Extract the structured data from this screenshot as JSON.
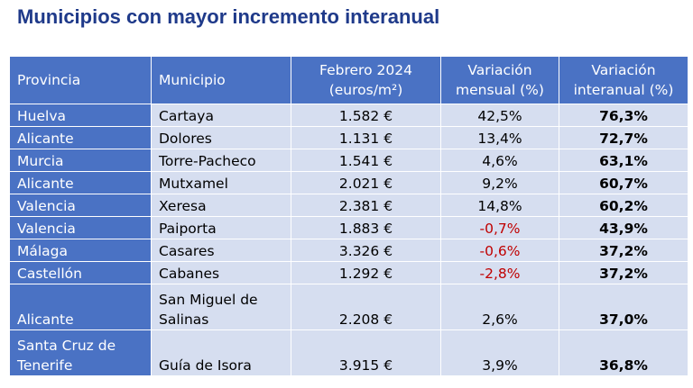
{
  "title": "Municipios con mayor incremento interanual",
  "table": {
    "headers": {
      "provincia": "Provincia",
      "municipio": "Municipio",
      "febrero_line1": "Febrero 2024",
      "febrero_line2": "(euros/m²)",
      "mensual_line1": "Variación",
      "mensual_line2": "mensual (%)",
      "interanual_line1": "Variación",
      "interanual_line2": "interanual (%)"
    },
    "rows": [
      {
        "provincia": "Huelva",
        "municipio": "Cartaya",
        "precio": "1.582 €",
        "mensual": "42,5%",
        "interanual": "76,3%"
      },
      {
        "provincia": "Alicante",
        "municipio": "Dolores",
        "precio": "1.131 €",
        "mensual": "13,4%",
        "interanual": "72,7%"
      },
      {
        "provincia": "Murcia",
        "municipio": "Torre-Pacheco",
        "precio": "1.541 €",
        "mensual": "4,6%",
        "interanual": "63,1%"
      },
      {
        "provincia": "Alicante",
        "municipio": "Mutxamel",
        "precio": "2.021 €",
        "mensual": "9,2%",
        "interanual": "60,7%"
      },
      {
        "provincia": "Valencia",
        "municipio": "Xeresa",
        "precio": "2.381 €",
        "mensual": "14,8%",
        "interanual": "60,2%"
      },
      {
        "provincia": "Valencia",
        "municipio": "Paiporta",
        "precio": "1.883 €",
        "mensual": "-0,7%",
        "interanual": "43,9%"
      },
      {
        "provincia": "Málaga",
        "municipio": "Casares",
        "precio": "3.326 €",
        "mensual": "-0,6%",
        "interanual": "37,2%"
      },
      {
        "provincia": "Castellón",
        "municipio": "Cabanes",
        "precio": "1.292 €",
        "mensual": "-2,8%",
        "interanual": "37,2%"
      },
      {
        "provincia": "Alicante",
        "municipio_line1": "San Miguel de",
        "municipio_line2": "Salinas",
        "precio": "2.208 €",
        "mensual": "2,6%",
        "interanual": "37,0%"
      },
      {
        "provincia_line1": "Santa Cruz de",
        "provincia_line2": "Tenerife",
        "municipio": "Guía de Isora",
        "precio": "3.915 €",
        "mensual": "3,9%",
        "interanual": "36,8%"
      }
    ]
  },
  "colors": {
    "title": "#1f3a8a",
    "header_bg": "#4a72c4",
    "cell_bg": "#d6def0",
    "negative": "#c00000"
  }
}
